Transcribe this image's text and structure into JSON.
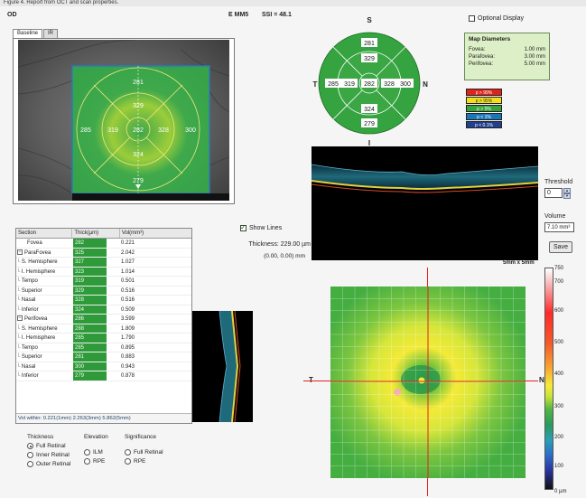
{
  "top_caption": "Figure 4. Report from OCT and scan properties.",
  "header": {
    "eye": "OD",
    "scan_mode": "E MM5",
    "ssi": "SSI = 48.1"
  },
  "tabs": [
    {
      "label": "Baseline"
    },
    {
      "label": "IR"
    }
  ],
  "fundus_overlay_values": {
    "superior": "281",
    "inner_superior": "329",
    "center": "282",
    "temporal_outer": "285",
    "temporal_inner": "319",
    "nasal_inner": "328",
    "nasal_outer": "300",
    "inner_inferior": "324",
    "inferior": "279"
  },
  "grid_values": {
    "superior": "281",
    "inner_superior": "329",
    "center": "282",
    "temporal_outer": "285",
    "temporal_inner": "319",
    "nasal_inner": "328",
    "nasal_outer": "300",
    "inner_inferior": "324",
    "inferior": "279"
  },
  "grid_labels": {
    "top": "S",
    "bottom": "I",
    "left": "T",
    "right": "N"
  },
  "optional_display": {
    "label": "Optional Display",
    "checked": false
  },
  "map_diameters": {
    "title": "Map Diameters",
    "rows": [
      {
        "name": "Fovea:",
        "value": "1.00 mm"
      },
      {
        "name": "Parafovea:",
        "value": "3.00 mm"
      },
      {
        "name": "Perifovea:",
        "value": "5.00 mm"
      }
    ]
  },
  "significance_legend": [
    {
      "label": "p > 99%",
      "color": "#e2231a"
    },
    {
      "label": "p > 95%",
      "color": "#f2e01b"
    },
    {
      "label": "p > 5%",
      "color": "#3aa43c"
    },
    {
      "label": "p < 1%",
      "color": "#1b78b8"
    },
    {
      "label": "p < 0.1%",
      "color": "#23408f"
    }
  ],
  "threshold": {
    "label": "Threshold",
    "value": "0"
  },
  "volume": {
    "label": "Volume",
    "value": "7.10 mm³"
  },
  "save_label": "Save",
  "show_lines": {
    "label": "Show Lines",
    "checked": true
  },
  "thickness_text": "Thickness: 229.00 µm",
  "coord_text": "(0.00, 0.00) mm",
  "table": {
    "headers": [
      "Section",
      "Thick(µm)",
      "Vol(mm³)"
    ],
    "rows": [
      {
        "section": "Fovea",
        "thick": "282",
        "vol": "0.221",
        "level": 0,
        "expander": ""
      },
      {
        "section": "ParaFovea",
        "thick": "325",
        "vol": "2.042",
        "level": 0,
        "expander": "−"
      },
      {
        "section": "S. Hemisphere",
        "thick": "327",
        "vol": "1.027",
        "level": 1,
        "expander": ""
      },
      {
        "section": "I. Hemisphere",
        "thick": "323",
        "vol": "1.014",
        "level": 1,
        "expander": ""
      },
      {
        "section": "Tempo",
        "thick": "319",
        "vol": "0.501",
        "level": 1,
        "expander": ""
      },
      {
        "section": "Superior",
        "thick": "329",
        "vol": "0.516",
        "level": 1,
        "expander": ""
      },
      {
        "section": "Nasal",
        "thick": "328",
        "vol": "0.516",
        "level": 1,
        "expander": ""
      },
      {
        "section": "Inferior",
        "thick": "324",
        "vol": "0.509",
        "level": 1,
        "expander": ""
      },
      {
        "section": "Perifovea",
        "thick": "286",
        "vol": "3.599",
        "level": 0,
        "expander": "−"
      },
      {
        "section": "S. Hemisphere",
        "thick": "288",
        "vol": "1.809",
        "level": 1,
        "expander": ""
      },
      {
        "section": "I. Hemisphere",
        "thick": "285",
        "vol": "1.790",
        "level": 1,
        "expander": ""
      },
      {
        "section": "Tempo",
        "thick": "285",
        "vol": "0.895",
        "level": 1,
        "expander": ""
      },
      {
        "section": "Superior",
        "thick": "281",
        "vol": "0.883",
        "level": 1,
        "expander": ""
      },
      {
        "section": "Nasal",
        "thick": "300",
        "vol": "0.943",
        "level": 1,
        "expander": ""
      },
      {
        "section": "Inferior",
        "thick": "279",
        "vol": "0.878",
        "level": 1,
        "expander": ""
      }
    ],
    "vol_within": "Vol within: 0.221(1mm) 2.263(3mm) 5.862(5mm)"
  },
  "thickness_opts": {
    "title": "Thickness",
    "options": [
      {
        "label": "Full Retinal",
        "selected": true
      },
      {
        "label": "Inner Retinal",
        "selected": false
      },
      {
        "label": "Outer Retinal",
        "selected": false
      }
    ]
  },
  "elevation_opts": {
    "title": "Elevation",
    "options": [
      {
        "label": "ILM",
        "selected": false
      },
      {
        "label": "RPE",
        "selected": false
      }
    ]
  },
  "significance_opts": {
    "title": "Significance",
    "options": [
      {
        "label": "Full Retinal",
        "selected": false
      },
      {
        "label": "RPE",
        "selected": false
      }
    ]
  },
  "map_dimensions": "5mm x 5mm",
  "map_side_labels": {
    "left": "T",
    "right": "N"
  },
  "colorbar_ticks": [
    "750",
    "700",
    "600",
    "500",
    "400",
    "300",
    "200",
    "100",
    "0 µm"
  ],
  "colors": {
    "green_region": "#2f9a3a",
    "accent_red": "#e2231a"
  }
}
